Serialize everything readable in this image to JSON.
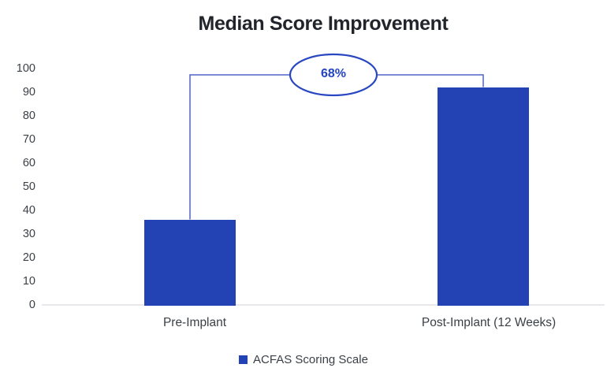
{
  "chart_data": {
    "type": "bar",
    "title": "Median Score Improvement",
    "categories": [
      "Pre-Implant",
      "Post-Implant (12 Weeks)"
    ],
    "series": [
      {
        "name": "ACFAS Scoring Scale",
        "values": [
          36.5,
          92.5
        ]
      }
    ],
    "annotation": {
      "label": "68%"
    },
    "ylim": [
      0,
      100
    ],
    "y_ticks": [
      0,
      10,
      20,
      30,
      40,
      50,
      60,
      70,
      80,
      90,
      100
    ],
    "grid": false,
    "legend_position": "bottom",
    "colors": {
      "bar": "#2343b4",
      "connector": "#5063c6",
      "annotation_stroke": "#2847c0",
      "annotation_fill": "#ffffff",
      "annotation_text": "#2544c4",
      "title_text": "#21252b",
      "axis_text": "#3b4046",
      "axis_line": "#e7e7ec",
      "background": "#ffffff"
    }
  }
}
